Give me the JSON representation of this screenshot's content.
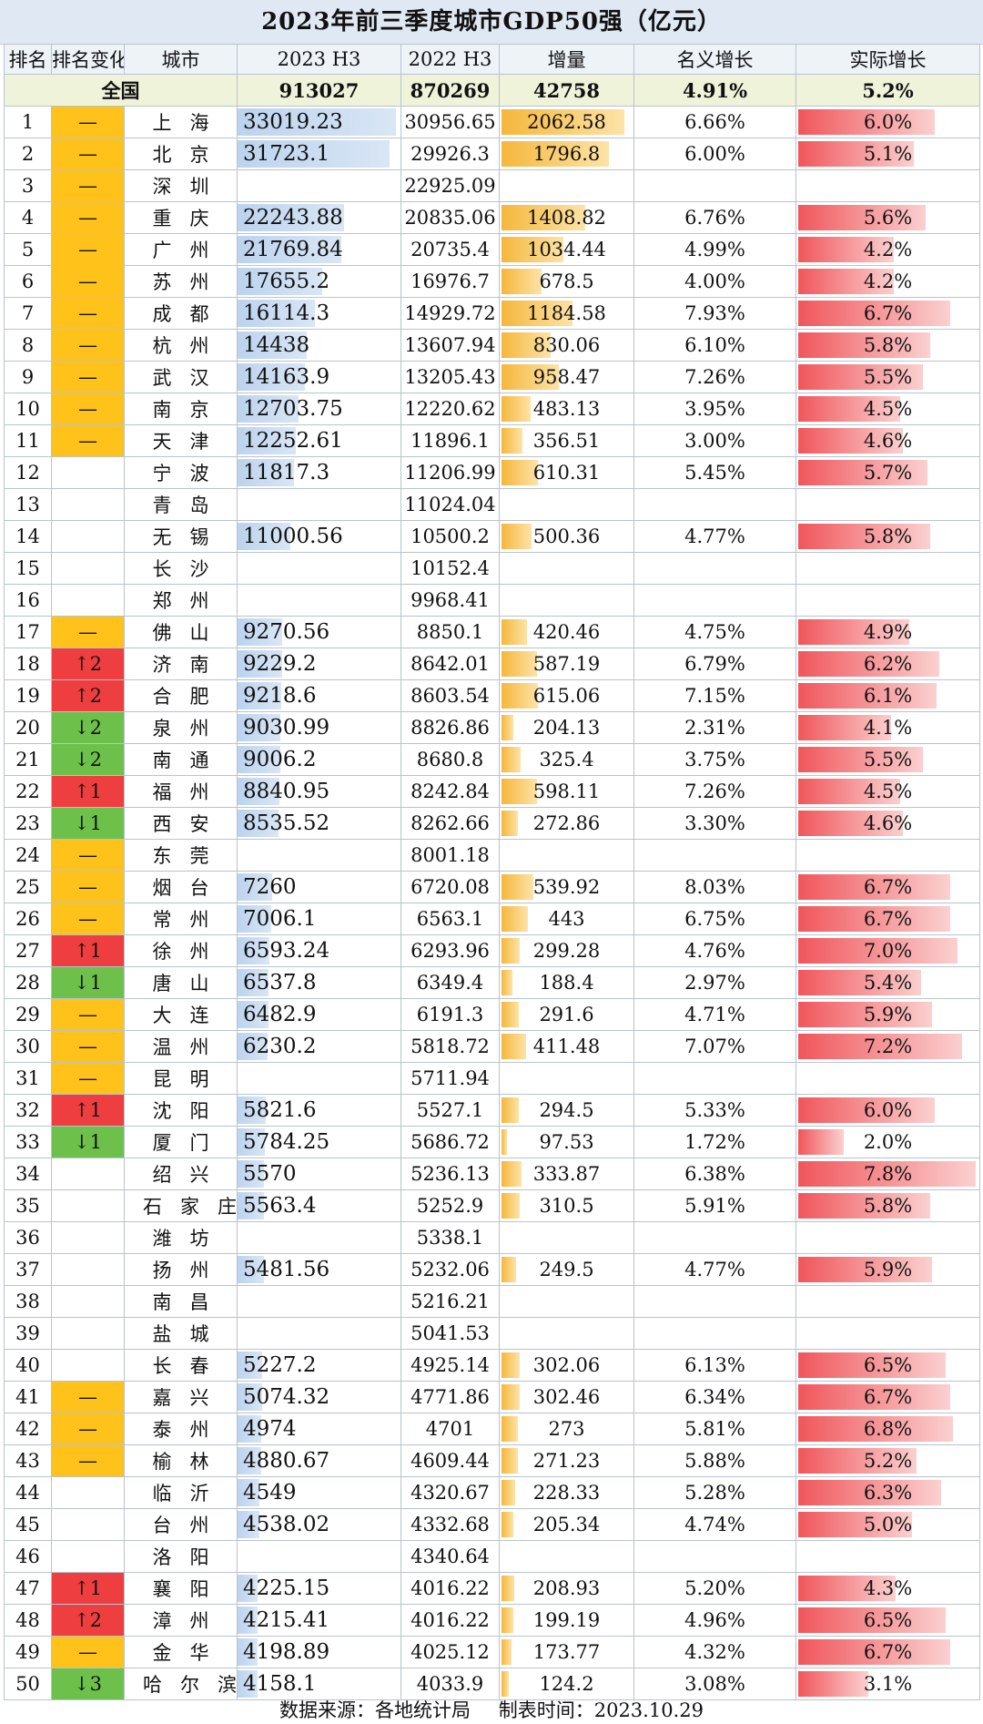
{
  "title": "2023年前三季度城市GDP50强（亿元）",
  "headers": [
    "排名",
    "排名变化",
    "城市",
    "2023 H3",
    "2022 H3",
    "增量",
    "名义增长",
    "实际增长"
  ],
  "national": {
    "label": "全国",
    "gdp2023": "913027",
    "gdp2022": "870269",
    "inc": "42758",
    "nominal": "4.91%",
    "real": "5.2%"
  },
  "rows": [
    {
      "rank": "1",
      "chg": "—",
      "city": "上海",
      "gdp2023": "33019.23",
      "gdp2022": "30956.65",
      "inc": "2062.58",
      "nominal": "6.66%",
      "real": "6.0%"
    },
    {
      "rank": "2",
      "chg": "—",
      "city": "北京",
      "gdp2023": "31723.1",
      "gdp2022": "29926.3",
      "inc": "1796.8",
      "nominal": "6.00%",
      "real": "5.1%"
    },
    {
      "rank": "3",
      "chg": "—",
      "city": "深圳",
      "gdp2023": "",
      "gdp2022": "22925.09",
      "inc": "",
      "nominal": "",
      "real": ""
    },
    {
      "rank": "4",
      "chg": "—",
      "city": "重庆",
      "gdp2023": "22243.88",
      "gdp2022": "20835.06",
      "inc": "1408.82",
      "nominal": "6.76%",
      "real": "5.6%"
    },
    {
      "rank": "5",
      "chg": "—",
      "city": "广州",
      "gdp2023": "21769.84",
      "gdp2022": "20735.4",
      "inc": "1034.44",
      "nominal": "4.99%",
      "real": "4.2%"
    },
    {
      "rank": "6",
      "chg": "—",
      "city": "苏州",
      "gdp2023": "17655.2",
      "gdp2022": "16976.7",
      "inc": "678.5",
      "nominal": "4.00%",
      "real": "4.2%"
    },
    {
      "rank": "7",
      "chg": "—",
      "city": "成都",
      "gdp2023": "16114.3",
      "gdp2022": "14929.72",
      "inc": "1184.58",
      "nominal": "7.93%",
      "real": "6.7%"
    },
    {
      "rank": "8",
      "chg": "—",
      "city": "杭州",
      "gdp2023": "14438",
      "gdp2022": "13607.94",
      "inc": "830.06",
      "nominal": "6.10%",
      "real": "5.8%"
    },
    {
      "rank": "9",
      "chg": "—",
      "city": "武汉",
      "gdp2023": "14163.9",
      "gdp2022": "13205.43",
      "inc": "958.47",
      "nominal": "7.26%",
      "real": "5.5%"
    },
    {
      "rank": "10",
      "chg": "—",
      "city": "南京",
      "gdp2023": "12703.75",
      "gdp2022": "12220.62",
      "inc": "483.13",
      "nominal": "3.95%",
      "real": "4.5%"
    },
    {
      "rank": "11",
      "chg": "—",
      "city": "天津",
      "gdp2023": "12252.61",
      "gdp2022": "11896.1",
      "inc": "356.51",
      "nominal": "3.00%",
      "real": "4.6%"
    },
    {
      "rank": "12",
      "chg": "",
      "city": "宁波",
      "gdp2023": "11817.3",
      "gdp2022": "11206.99",
      "inc": "610.31",
      "nominal": "5.45%",
      "real": "5.7%"
    },
    {
      "rank": "13",
      "chg": "",
      "city": "青岛",
      "gdp2023": "",
      "gdp2022": "11024.04",
      "inc": "",
      "nominal": "",
      "real": ""
    },
    {
      "rank": "14",
      "chg": "",
      "city": "无锡",
      "gdp2023": "11000.56",
      "gdp2022": "10500.2",
      "inc": "500.36",
      "nominal": "4.77%",
      "real": "5.8%"
    },
    {
      "rank": "15",
      "chg": "",
      "city": "长沙",
      "gdp2023": "",
      "gdp2022": "10152.4",
      "inc": "",
      "nominal": "",
      "real": ""
    },
    {
      "rank": "16",
      "chg": "",
      "city": "郑州",
      "gdp2023": "",
      "gdp2022": "9968.41",
      "inc": "",
      "nominal": "",
      "real": ""
    },
    {
      "rank": "17",
      "chg": "—",
      "city": "佛山",
      "gdp2023": "9270.56",
      "gdp2022": "8850.1",
      "inc": "420.46",
      "nominal": "4.75%",
      "real": "4.9%"
    },
    {
      "rank": "18",
      "chg": "↑2",
      "city": "济南",
      "gdp2023": "9229.2",
      "gdp2022": "8642.01",
      "inc": "587.19",
      "nominal": "6.79%",
      "real": "6.2%"
    },
    {
      "rank": "19",
      "chg": "↑2",
      "city": "合肥",
      "gdp2023": "9218.6",
      "gdp2022": "8603.54",
      "inc": "615.06",
      "nominal": "7.15%",
      "real": "6.1%"
    },
    {
      "rank": "20",
      "chg": "↓2",
      "city": "泉州",
      "gdp2023": "9030.99",
      "gdp2022": "8826.86",
      "inc": "204.13",
      "nominal": "2.31%",
      "real": "4.1%"
    },
    {
      "rank": "21",
      "chg": "↓2",
      "city": "南通",
      "gdp2023": "9006.2",
      "gdp2022": "8680.8",
      "inc": "325.4",
      "nominal": "3.75%",
      "real": "5.5%"
    },
    {
      "rank": "22",
      "chg": "↑1",
      "city": "福州",
      "gdp2023": "8840.95",
      "gdp2022": "8242.84",
      "inc": "598.11",
      "nominal": "7.26%",
      "real": "4.5%"
    },
    {
      "rank": "23",
      "chg": "↓1",
      "city": "西安",
      "gdp2023": "8535.52",
      "gdp2022": "8262.66",
      "inc": "272.86",
      "nominal": "3.30%",
      "real": "4.6%"
    },
    {
      "rank": "24",
      "chg": "—",
      "city": "东莞",
      "gdp2023": "",
      "gdp2022": "8001.18",
      "inc": "",
      "nominal": "",
      "real": ""
    },
    {
      "rank": "25",
      "chg": "—",
      "city": "烟台",
      "gdp2023": "7260",
      "gdp2022": "6720.08",
      "inc": "539.92",
      "nominal": "8.03%",
      "real": "6.7%"
    },
    {
      "rank": "26",
      "chg": "—",
      "city": "常州",
      "gdp2023": "7006.1",
      "gdp2022": "6563.1",
      "inc": "443",
      "nominal": "6.75%",
      "real": "6.7%"
    },
    {
      "rank": "27",
      "chg": "↑1",
      "city": "徐州",
      "gdp2023": "6593.24",
      "gdp2022": "6293.96",
      "inc": "299.28",
      "nominal": "4.76%",
      "real": "7.0%"
    },
    {
      "rank": "28",
      "chg": "↓1",
      "city": "唐山",
      "gdp2023": "6537.8",
      "gdp2022": "6349.4",
      "inc": "188.4",
      "nominal": "2.97%",
      "real": "5.4%"
    },
    {
      "rank": "29",
      "chg": "—",
      "city": "大连",
      "gdp2023": "6482.9",
      "gdp2022": "6191.3",
      "inc": "291.6",
      "nominal": "4.71%",
      "real": "5.9%"
    },
    {
      "rank": "30",
      "chg": "—",
      "city": "温州",
      "gdp2023": "6230.2",
      "gdp2022": "5818.72",
      "inc": "411.48",
      "nominal": "7.07%",
      "real": "7.2%"
    },
    {
      "rank": "31",
      "chg": "—",
      "city": "昆明",
      "gdp2023": "",
      "gdp2022": "5711.94",
      "inc": "",
      "nominal": "",
      "real": ""
    },
    {
      "rank": "32",
      "chg": "↑1",
      "city": "沈阳",
      "gdp2023": "5821.6",
      "gdp2022": "5527.1",
      "inc": "294.5",
      "nominal": "5.33%",
      "real": "6.0%"
    },
    {
      "rank": "33",
      "chg": "↓1",
      "city": "厦门",
      "gdp2023": "5784.25",
      "gdp2022": "5686.72",
      "inc": "97.53",
      "nominal": "1.72%",
      "real": "2.0%"
    },
    {
      "rank": "34",
      "chg": "",
      "city": "绍兴",
      "gdp2023": "5570",
      "gdp2022": "5236.13",
      "inc": "333.87",
      "nominal": "6.38%",
      "real": "7.8%"
    },
    {
      "rank": "35",
      "chg": "",
      "city": "石家庄",
      "gdp2023": "5563.4",
      "gdp2022": "5252.9",
      "inc": "310.5",
      "nominal": "5.91%",
      "real": "5.8%"
    },
    {
      "rank": "36",
      "chg": "",
      "city": "潍坊",
      "gdp2023": "",
      "gdp2022": "5338.1",
      "inc": "",
      "nominal": "",
      "real": ""
    },
    {
      "rank": "37",
      "chg": "",
      "city": "扬州",
      "gdp2023": "5481.56",
      "gdp2022": "5232.06",
      "inc": "249.5",
      "nominal": "4.77%",
      "real": "5.9%"
    },
    {
      "rank": "38",
      "chg": "",
      "city": "南昌",
      "gdp2023": "",
      "gdp2022": "5216.21",
      "inc": "",
      "nominal": "",
      "real": ""
    },
    {
      "rank": "39",
      "chg": "",
      "city": "盐城",
      "gdp2023": "",
      "gdp2022": "5041.53",
      "inc": "",
      "nominal": "",
      "real": ""
    },
    {
      "rank": "40",
      "chg": "",
      "city": "长春",
      "gdp2023": "5227.2",
      "gdp2022": "4925.14",
      "inc": "302.06",
      "nominal": "6.13%",
      "real": "6.5%"
    },
    {
      "rank": "41",
      "chg": "—",
      "city": "嘉兴",
      "gdp2023": "5074.32",
      "gdp2022": "4771.86",
      "inc": "302.46",
      "nominal": "6.34%",
      "real": "6.7%"
    },
    {
      "rank": "42",
      "chg": "—",
      "city": "泰州",
      "gdp2023": "4974",
      "gdp2022": "4701",
      "inc": "273",
      "nominal": "5.81%",
      "real": "6.8%"
    },
    {
      "rank": "43",
      "chg": "—",
      "city": "榆林",
      "gdp2023": "4880.67",
      "gdp2022": "4609.44",
      "inc": "271.23",
      "nominal": "5.88%",
      "real": "5.2%"
    },
    {
      "rank": "44",
      "chg": "",
      "city": "临沂",
      "gdp2023": "4549",
      "gdp2022": "4320.67",
      "inc": "228.33",
      "nominal": "5.28%",
      "real": "6.3%"
    },
    {
      "rank": "45",
      "chg": "",
      "city": "台州",
      "gdp2023": "4538.02",
      "gdp2022": "4332.68",
      "inc": "205.34",
      "nominal": "4.74%",
      "real": "5.0%"
    },
    {
      "rank": "46",
      "chg": "",
      "city": "洛阳",
      "gdp2023": "",
      "gdp2022": "4340.64",
      "inc": "",
      "nominal": "",
      "real": ""
    },
    {
      "rank": "47",
      "chg": "↑1",
      "city": "襄阳",
      "gdp2023": "4225.15",
      "gdp2022": "4016.22",
      "inc": "208.93",
      "nominal": "5.20%",
      "real": "4.3%"
    },
    {
      "rank": "48",
      "chg": "↑2",
      "city": "漳州",
      "gdp2023": "4215.41",
      "gdp2022": "4016.22",
      "inc": "199.19",
      "nominal": "4.96%",
      "real": "6.5%"
    },
    {
      "rank": "49",
      "chg": "—",
      "city": "金华",
      "gdp2023": "4198.89",
      "gdp2022": "4025.12",
      "inc": "173.77",
      "nominal": "4.32%",
      "real": "6.7%"
    },
    {
      "rank": "50",
      "chg": "↓3",
      "city": "哈尔滨",
      "gdp2023": "4158.1",
      "gdp2022": "4033.9",
      "inc": "124.2",
      "nominal": "3.08%",
      "real": "3.1%"
    }
  ],
  "footer": {
    "source": "数据来源：各地统计局",
    "date": "制表时间：2023.10.29"
  },
  "colors": {
    "same": "#ffc21a",
    "up": "#ef3e40",
    "down": "#6dc14a"
  }
}
